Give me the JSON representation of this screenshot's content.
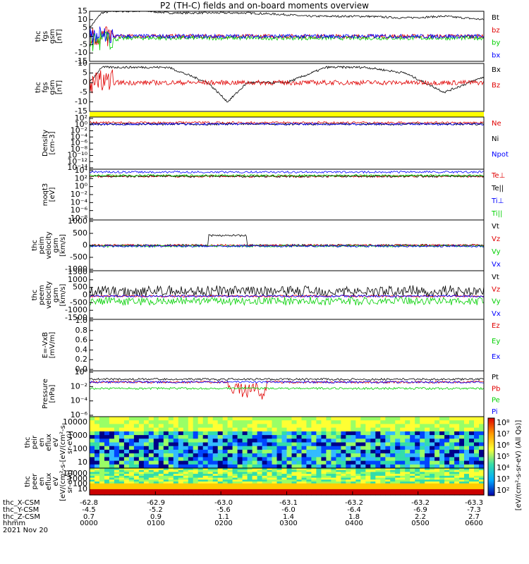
{
  "title": "P2 (TH-C) fields and on-board moments overview",
  "colors": {
    "black": "#000000",
    "red": "#e00000",
    "green": "#00d000",
    "blue": "#0000ff",
    "yellow": "#ffff00"
  },
  "chart_data": [
    {
      "type": "line",
      "ylabel": [
        "thc",
        "fgs",
        "gsm",
        "[nT]"
      ],
      "ylim": [
        -15,
        15
      ],
      "yticks": [
        -15,
        -10,
        -5,
        0,
        5,
        10,
        15
      ],
      "series": [
        {
          "name": "Bt",
          "color": "#000000",
          "x": [
            0,
            3,
            6,
            10,
            15,
            20,
            30,
            40,
            50,
            55,
            60,
            65,
            70,
            80,
            90,
            100
          ],
          "values": [
            5,
            14,
            15,
            15,
            15,
            14,
            14,
            14,
            13,
            12,
            12,
            12,
            12,
            11,
            12,
            10
          ]
        },
        {
          "name": "bz",
          "color": "#e00000",
          "x": [
            0,
            10,
            20,
            40,
            60,
            80,
            100
          ],
          "values": [
            0,
            0,
            0,
            0,
            0,
            0,
            0
          ]
        },
        {
          "name": "by",
          "color": "#00d000",
          "x": [
            0,
            10,
            20,
            40,
            60,
            80,
            100
          ],
          "values": [
            -3,
            -1,
            -1,
            -1,
            -1,
            -1,
            -1
          ]
        },
        {
          "name": "bx",
          "color": "#0000ff",
          "x": [
            0,
            10,
            20,
            40,
            60,
            80,
            100
          ],
          "values": [
            0,
            0,
            0,
            0,
            0,
            0,
            0
          ]
        }
      ]
    },
    {
      "type": "line",
      "ylabel": [
        "thc",
        "fgs",
        "gsm",
        "[nT]"
      ],
      "ylim": [
        -15,
        10
      ],
      "yticks": [
        -15,
        -10,
        -5,
        0,
        5,
        10
      ],
      "series": [
        {
          "name": "Bx",
          "color": "#000000",
          "x": [
            0,
            3,
            10,
            20,
            30,
            35,
            40,
            50,
            60,
            70,
            80,
            90,
            100
          ],
          "values": [
            0,
            8,
            8,
            8,
            0,
            -10,
            0,
            0,
            8,
            8,
            5,
            -5,
            3
          ]
        },
        {
          "name": "Bz",
          "color": "#e00000",
          "x": [
            0,
            20,
            40,
            60,
            80,
            100
          ],
          "values": [
            0,
            0,
            0,
            0,
            0,
            0
          ]
        }
      ]
    },
    {
      "type": "line",
      "ylabel": [
        "Density",
        "[cm-3]"
      ],
      "yscale": "log",
      "ylim": [
        1e-14,
        100.0
      ],
      "yticks": [
        "10²",
        "10⁰",
        "10⁻²",
        "10⁻⁴",
        "10⁻⁶",
        "10⁻⁸",
        "10⁻¹⁰",
        "10⁻¹²",
        "10⁻¹⁴"
      ],
      "series": [
        {
          "name": "Ne",
          "color": "#e00000"
        },
        {
          "name": "Ni",
          "color": "#000000"
        },
        {
          "name": "Npot",
          "color": "#0000ff"
        }
      ]
    },
    {
      "type": "line",
      "ylabel": [
        "moqt3",
        "[eV]"
      ],
      "yscale": "log",
      "ylim": [
        1e-08,
        10000.0
      ],
      "yticks": [
        "10⁴",
        "10²",
        "10⁰",
        "10⁻²",
        "10⁻⁴",
        "10⁻⁶",
        "10⁻⁸"
      ],
      "series": [
        {
          "name": "Te⊥",
          "color": "#e00000"
        },
        {
          "name": "Te||",
          "color": "#000000"
        },
        {
          "name": "Ti⊥",
          "color": "#0000ff"
        },
        {
          "name": "Ti||",
          "color": "#00d000"
        }
      ]
    },
    {
      "type": "line",
      "ylabel": [
        "thc",
        "peim",
        "velocity",
        "gsm",
        "[km/s]"
      ],
      "ylim": [
        -1000,
        1000
      ],
      "yticks": [
        -1000,
        -500,
        0,
        500,
        1000
      ],
      "series": [
        {
          "name": "Vt",
          "color": "#000000"
        },
        {
          "name": "Vz",
          "color": "#e00000"
        },
        {
          "name": "Vy",
          "color": "#00d000"
        },
        {
          "name": "Vx",
          "color": "#0000ff"
        }
      ]
    },
    {
      "type": "line",
      "ylabel": [
        "thc",
        "peem",
        "velocity",
        "gsm",
        "[km/s]"
      ],
      "ylim": [
        -1500,
        1500
      ],
      "yticks": [
        -1500,
        -1000,
        -500,
        0,
        500,
        1000,
        1500
      ],
      "series": [
        {
          "name": "Vt",
          "color": "#000000"
        },
        {
          "name": "Vz",
          "color": "#e00000"
        },
        {
          "name": "Vy",
          "color": "#00d000"
        },
        {
          "name": "Vx",
          "color": "#0000ff"
        }
      ]
    },
    {
      "type": "line",
      "ylabel": [
        "E=-VxB",
        "[mV/m]"
      ],
      "ylim": [
        0,
        1
      ],
      "yticks": [
        "0.0",
        "0.2",
        "0.4",
        "0.6",
        "0.8",
        "1.0"
      ],
      "series": [
        {
          "name": "Ez",
          "color": "#e00000"
        },
        {
          "name": "Ey",
          "color": "#00d000"
        },
        {
          "name": "Ex",
          "color": "#0000ff"
        }
      ]
    },
    {
      "type": "line",
      "ylabel": [
        "Pressure",
        "[nPa]"
      ],
      "yscale": "log",
      "ylim": [
        1e-06,
        1.0
      ],
      "yticks": [
        "10⁰",
        "10⁻²",
        "10⁻⁴",
        "10⁻⁶"
      ],
      "series": [
        {
          "name": "Pt",
          "color": "#000000"
        },
        {
          "name": "Pb",
          "color": "#e00000"
        },
        {
          "name": "Pe",
          "color": "#00d000"
        },
        {
          "name": "Pi",
          "color": "#0000ff"
        }
      ]
    },
    {
      "type": "heatmap",
      "ylabel": [
        "thc",
        "peir",
        "en",
        "eflux",
        "eV",
        "[eV/(cm²-s-",
        "sr-eV)]"
      ],
      "yscale": "log",
      "yticks": [
        "10000",
        "1000",
        "100",
        "10"
      ]
    },
    {
      "type": "heatmap",
      "ylabel": [
        "thc",
        "peer",
        "en",
        "eflux",
        "eV",
        "[eV/(cm²-s-",
        "sr-eV)]"
      ],
      "yscale": "log",
      "yticks": [
        "10000",
        "1000",
        "100",
        "10"
      ]
    }
  ],
  "colorbar": {
    "ticks": [
      "10⁸",
      "10⁷",
      "10⁶",
      "10⁵",
      "10⁴",
      "10³",
      "10²"
    ],
    "label": "[eV/(cm²-s-sr-eV) (All Qs)]"
  },
  "footer": {
    "rows": [
      {
        "label": "thc_X-CSM",
        "values": [
          "-62.8",
          "-62.9",
          "-63.0",
          "-63.1",
          "-63.2",
          "-63.2",
          "-63.3"
        ]
      },
      {
        "label": "thc_Y-CSM",
        "values": [
          "-4.5",
          "-5.2",
          "-5.6",
          "-6.0",
          "-6.4",
          "-6.9",
          "-7.3"
        ]
      },
      {
        "label": "thc_Z-CSM",
        "values": [
          "0.7",
          "0.9",
          "1.1",
          "1.4",
          "1.8",
          "2.2",
          "2.7"
        ]
      },
      {
        "label": "hhmm",
        "values": [
          "0000",
          "0100",
          "0200",
          "0300",
          "0400",
          "0500",
          "0600"
        ]
      }
    ],
    "date": "2021 Nov 20"
  }
}
